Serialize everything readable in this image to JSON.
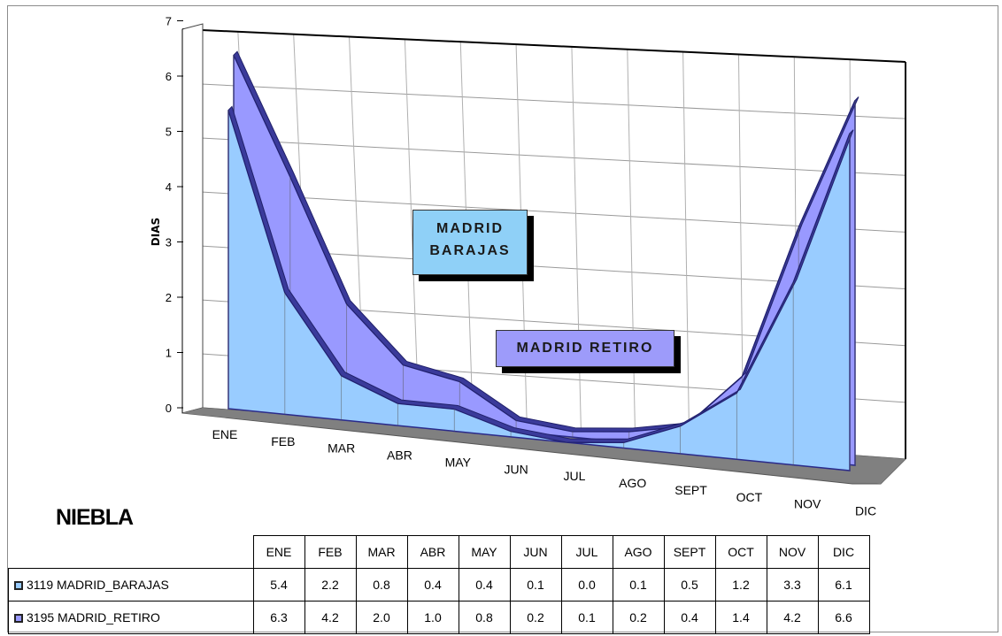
{
  "chart_data": {
    "type": "area",
    "title": "NIEBLA",
    "ylabel": "DIAS",
    "xlabel": "",
    "ylim": [
      0,
      7
    ],
    "yticks": [
      0,
      1,
      2,
      3,
      4,
      5,
      6,
      7
    ],
    "grid": true,
    "categories": [
      "ENE",
      "FEB",
      "MAR",
      "ABR",
      "MAY",
      "JUN",
      "JUL",
      "AGO",
      "SEPT",
      "OCT",
      "NOV",
      "DIC"
    ],
    "series": [
      {
        "name": "3119 MADRID_BARAJAS",
        "values": [
          5.4,
          2.2,
          0.8,
          0.4,
          0.4,
          0.1,
          0.0,
          0.1,
          0.5,
          1.2,
          3.3,
          6.1
        ],
        "color": "#99ccff"
      },
      {
        "name": "3195 MADRID_RETIRO",
        "values": [
          6.3,
          4.2,
          2.0,
          1.0,
          0.8,
          0.2,
          0.1,
          0.2,
          0.4,
          1.4,
          4.2,
          6.6
        ],
        "color": "#9999ff"
      }
    ],
    "annotations": [
      "MADRID BARAJAS",
      "MADRID RETIRO"
    ],
    "table": {
      "rows": [
        {
          "name": "3119 MADRID_BARAJAS",
          "cells": [
            "5.4",
            "2.2",
            "0.8",
            "0.4",
            "0.4",
            "0.1",
            "0.0",
            "0.1",
            "0.5",
            "1.2",
            "3.3",
            "6.1"
          ]
        },
        {
          "name": "3195 MADRID_RETIRO",
          "cells": [
            "6.3",
            "4.2",
            "2.0",
            "1.0",
            "0.8",
            "0.2",
            "0.1",
            "0.2",
            "0.4",
            "1.4",
            "4.2",
            "6.6"
          ]
        }
      ]
    }
  }
}
